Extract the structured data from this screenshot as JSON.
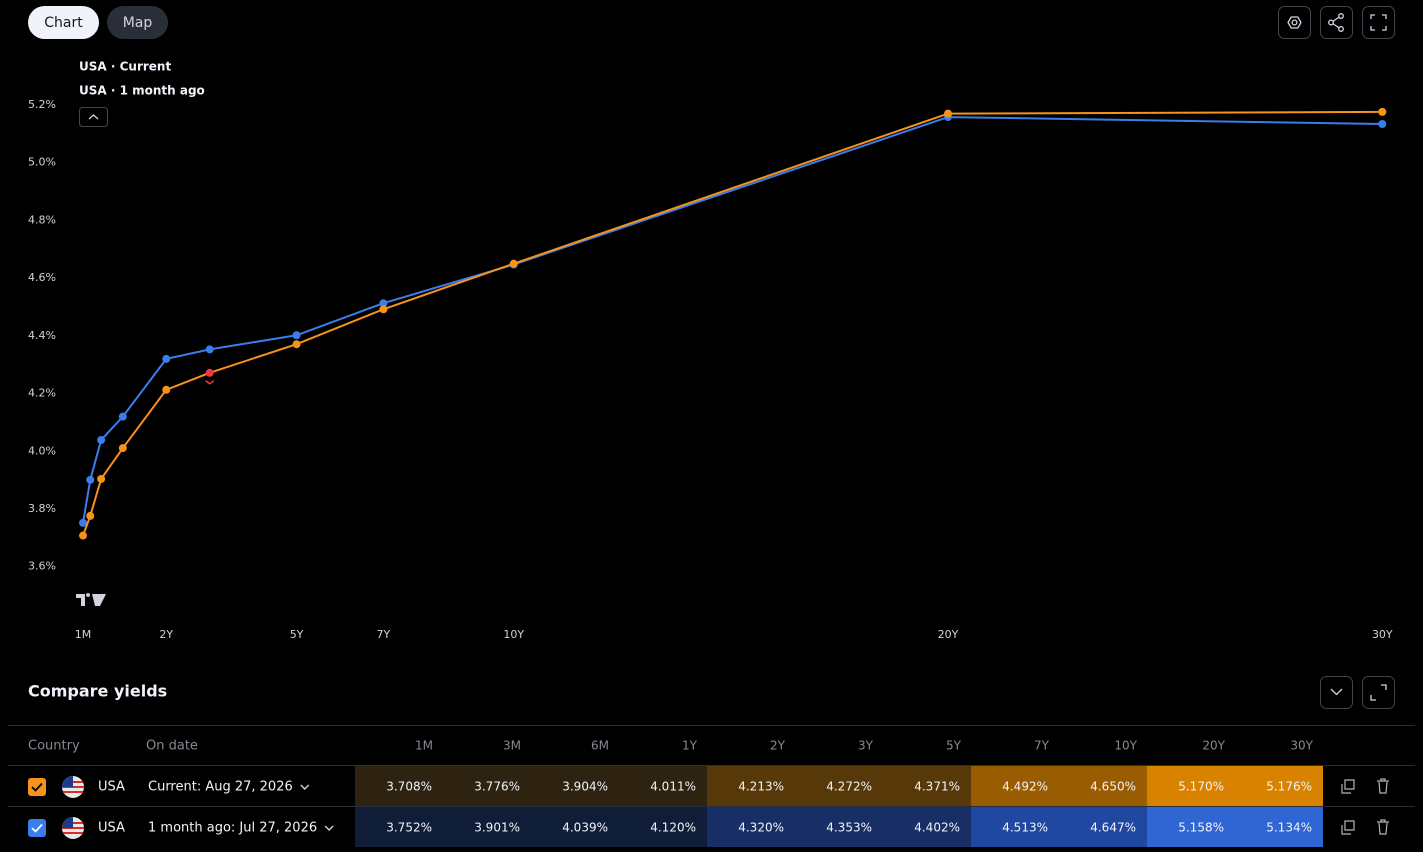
{
  "toolbar": {
    "tabs": [
      "Chart",
      "Map"
    ]
  },
  "chart_data": {
    "type": "line",
    "x": [
      0.0833,
      0.25,
      0.5,
      1,
      2,
      3,
      5,
      7,
      10,
      20,
      30
    ],
    "xlim": [
      0,
      30
    ],
    "xticks": [
      {
        "value": 0.0833,
        "label": "1M"
      },
      {
        "value": 2,
        "label": "2Y"
      },
      {
        "value": 5,
        "label": "5Y"
      },
      {
        "value": 7,
        "label": "7Y"
      },
      {
        "value": 10,
        "label": "10Y"
      },
      {
        "value": 20,
        "label": "20Y"
      },
      {
        "value": 30,
        "label": "30Y"
      }
    ],
    "ylim": [
      3.45,
      5.3
    ],
    "yticks": [
      {
        "value": 3.6,
        "label": "3.6%"
      },
      {
        "value": 3.8,
        "label": "3.8%"
      },
      {
        "value": 4.0,
        "label": "4.0%"
      },
      {
        "value": 4.2,
        "label": "4.2%"
      },
      {
        "value": 4.4,
        "label": "4.4%"
      },
      {
        "value": 4.6,
        "label": "4.6%"
      },
      {
        "value": 4.8,
        "label": "4.8%"
      },
      {
        "value": 5.0,
        "label": "5.0%"
      },
      {
        "value": 5.2,
        "label": "5.2%"
      }
    ],
    "series": [
      {
        "name": "USA · Current",
        "color": "#f7931a",
        "values": [
          3.708,
          3.776,
          3.904,
          4.011,
          4.213,
          4.272,
          4.371,
          4.492,
          4.65,
          5.17,
          5.176
        ],
        "value_labels": [
          "3.708%",
          "3.776%",
          "3.904%",
          "4.011%",
          "4.213%",
          "4.272%",
          "4.371%",
          "4.492%",
          "4.650%",
          "5.170%",
          "5.176%"
        ]
      },
      {
        "name": "USA · 1 month ago",
        "color": "#3b7ded",
        "values": [
          3.752,
          3.901,
          4.039,
          4.12,
          4.32,
          4.353,
          4.402,
          4.513,
          4.647,
          5.158,
          5.134
        ],
        "value_labels": [
          "3.752%",
          "3.901%",
          "4.039%",
          "4.120%",
          "4.320%",
          "4.353%",
          "4.402%",
          "4.513%",
          "4.647%",
          "5.158%",
          "5.134%"
        ]
      }
    ],
    "highlight": {
      "series": 0,
      "index": 5,
      "color": "#f23645"
    }
  },
  "table": {
    "title": "Compare yields",
    "columns": [
      "Country",
      "On date",
      "1M",
      "3M",
      "6M",
      "1Y",
      "2Y",
      "3Y",
      "5Y",
      "7Y",
      "10Y",
      "20Y",
      "30Y"
    ],
    "rows": [
      {
        "country": "USA",
        "date": "Current: Aug 27, 2026"
      },
      {
        "country": "USA",
        "date": "1 month ago: Jul 27, 2026"
      }
    ]
  }
}
